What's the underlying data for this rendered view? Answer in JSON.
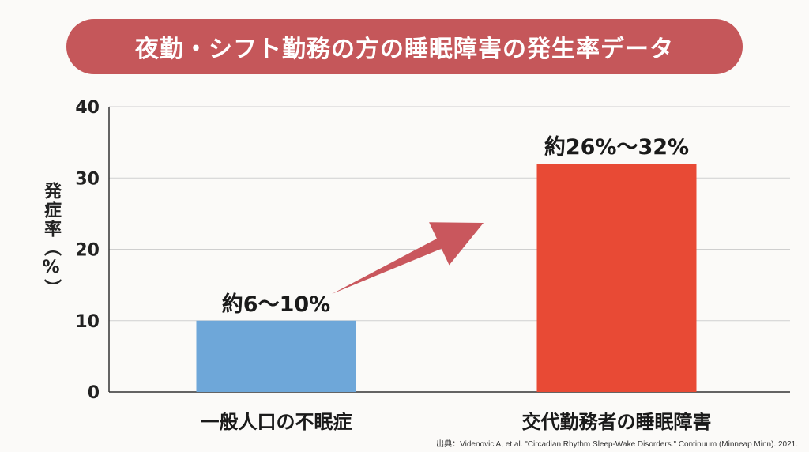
{
  "title": "夜勤・シフト勤務の方の睡眠障害の発生率データ",
  "source": "出典：Videnovic A, et al. \"Circadian Rhythm Sleep-Wake Disorders.\" Continuum (Minneap Minn). 2021.",
  "colors": {
    "banner": "#c5575a",
    "bar_general": "#6ea7d9",
    "bar_shift": "#e84a35",
    "arrow": "#c9575d"
  },
  "chart_data": {
    "type": "bar",
    "ylabel": "発症率（%）",
    "ylim": [
      0,
      40
    ],
    "yticks": [
      0,
      10,
      20,
      30,
      40
    ],
    "grid": true,
    "categories": [
      "一般人口の不眠症",
      "交代勤務者の睡眠障害"
    ],
    "values": [
      10,
      32
    ],
    "data_labels": [
      "約6〜10%",
      "約26%〜32%"
    ],
    "bar_colors": [
      "#6ea7d9",
      "#e84a35"
    ]
  }
}
